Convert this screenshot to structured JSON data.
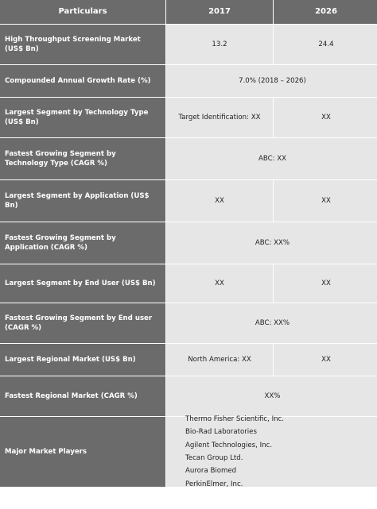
{
  "header": {
    "col1": "Particulars",
    "col2": "2017",
    "col3": "2026"
  },
  "rows": [
    {
      "label": "High Throughput Screening Market (US$ Bn)",
      "v2017": "13.2",
      "v2026": "24.4"
    },
    {
      "label": "Compounded Annual Growth Rate (%)",
      "combined": "7.0% (2018 – 2026)"
    },
    {
      "label": "Largest Segment by Technology Type (US$ Bn)",
      "v2017": "Target Identification: XX",
      "v2026": "XX"
    },
    {
      "label": "Fastest Growing Segment by Technology Type (CAGR %)",
      "combined": "ABC: XX"
    },
    {
      "label": "Largest Segment by Application (US$ Bn)",
      "v2017": "XX",
      "v2026": "XX"
    },
    {
      "label": "Fastest Growing Segment by Application (CAGR %)",
      "combined": "ABC: XX%"
    },
    {
      "label": "Largest Segment by End User (US$ Bn)",
      "v2017": "XX",
      "v2026": "XX"
    },
    {
      "label": "Fastest Growing Segment by End user (CAGR %)",
      "combined": "ABC: XX%"
    },
    {
      "label": "Largest Regional Market (US$ Bn)",
      "v2017": "North America: XX",
      "v2026": "XX"
    },
    {
      "label": "Fastest Regional Market (CAGR %)",
      "combined": "XX%"
    },
    {
      "label": "Major Market Players",
      "players": [
        "Thermo Fisher Scientific, Inc.",
        "Bio-Rad Laboratories",
        "Agilent Technologies, Inc.",
        "Tecan Group Ltd.",
        "Aurora Biomed",
        "PerkinElmer, Inc."
      ]
    }
  ]
}
